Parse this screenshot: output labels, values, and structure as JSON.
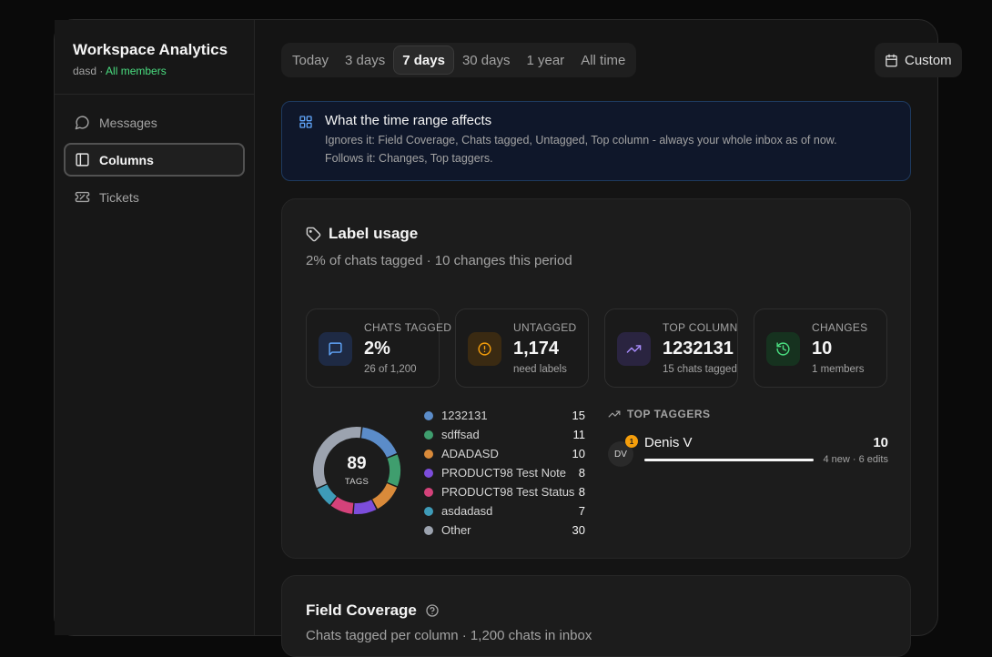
{
  "sidebar": {
    "title": "Workspace Analytics",
    "workspace": "dasd",
    "separator": "·",
    "scope": "All members",
    "items": [
      {
        "label": "Messages",
        "icon": "message-circle-icon"
      },
      {
        "label": "Columns",
        "icon": "columns-icon",
        "active": true
      },
      {
        "label": "Tickets",
        "icon": "ticket-icon"
      }
    ]
  },
  "range": {
    "options": [
      "Today",
      "3 days",
      "7 days",
      "30 days",
      "1 year",
      "All time"
    ],
    "selected": "7 days",
    "custom_label": "Custom"
  },
  "info": {
    "title": "What the time range affects",
    "line1": "Ignores it: Field Coverage, Chats tagged, Untagged, Top column - always your whole inbox as of now.",
    "line2": "Follows it: Changes, Top taggers."
  },
  "label_usage": {
    "title": "Label usage",
    "subtitle": "2% of chats tagged · 10 changes this period",
    "stats": [
      {
        "label": "CHATS TAGGED",
        "value": "2%",
        "note": "26 of 1,200",
        "icon": "chat-icon",
        "accent": "#60a5fa",
        "bg": "#1e2a44"
      },
      {
        "label": "UNTAGGED",
        "value": "1,174",
        "note": "need labels",
        "icon": "alert-icon",
        "accent": "#f59e0b",
        "bg": "#3a2a12"
      },
      {
        "label": "TOP COLUMN",
        "value": "1232131",
        "note": "15 chats tagged",
        "icon": "trending-icon",
        "accent": "#a78bfa",
        "bg": "#2a2440"
      },
      {
        "label": "CHANGES",
        "value": "10",
        "note": "1 members",
        "icon": "history-icon",
        "accent": "#4ade80",
        "bg": "#16321f"
      }
    ],
    "donut": {
      "total": "89",
      "label": "TAGS"
    },
    "chart_data": {
      "type": "pie",
      "categories": [
        "1232131",
        "sdffsad",
        "ADADASD",
        "PRODUCT98 Test Note",
        "PRODUCT98 Test Status",
        "asdadasd",
        "Other"
      ],
      "values": [
        15,
        11,
        10,
        8,
        8,
        7,
        30
      ],
      "colors": [
        "#5b8cc9",
        "#3f9e6e",
        "#d98a3a",
        "#7c4ddb",
        "#d4427a",
        "#3e9bb8",
        "#9ca3af"
      ]
    },
    "legend_values": [
      "15",
      "11",
      "10",
      "8",
      "8",
      "7",
      "30"
    ],
    "taggers": {
      "heading": "TOP TAGGERS",
      "list": [
        {
          "initials": "DV",
          "rank": "1",
          "name": "Denis V",
          "count": "10",
          "note": "4 new · 6 edits",
          "share": 1.0
        }
      ]
    }
  },
  "field_coverage": {
    "title": "Field Coverage",
    "subtitle": "Chats tagged per column · 1,200 chats in inbox"
  }
}
